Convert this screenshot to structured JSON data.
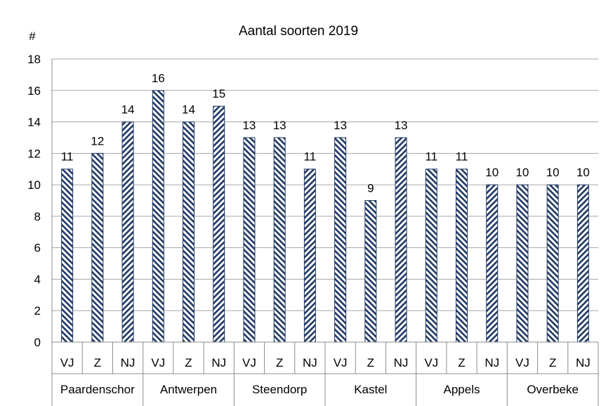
{
  "chart_data": {
    "type": "bar",
    "title": "Aantal soorten 2019",
    "ylabel": "#",
    "xlabel": "",
    "ylim": [
      0,
      18
    ],
    "yticks": [
      0,
      2,
      4,
      6,
      8,
      10,
      12,
      14,
      16,
      18
    ],
    "grid": true,
    "legend": "none",
    "groups": [
      {
        "name": "Paardenschor",
        "categories": [
          "VJ",
          "Z",
          "NJ"
        ],
        "values": [
          11,
          12,
          14
        ]
      },
      {
        "name": "Antwerpen",
        "categories": [
          "VJ",
          "Z",
          "NJ"
        ],
        "values": [
          16,
          14,
          15
        ]
      },
      {
        "name": "Steendorp",
        "categories": [
          "VJ",
          "Z",
          "NJ"
        ],
        "values": [
          13,
          13,
          11
        ]
      },
      {
        "name": "Kastel",
        "categories": [
          "VJ",
          "Z",
          "NJ"
        ],
        "values": [
          13,
          9,
          13
        ]
      },
      {
        "name": "Appels",
        "categories": [
          "VJ",
          "Z",
          "NJ"
        ],
        "values": [
          11,
          11,
          10
        ]
      },
      {
        "name": "Overbeke",
        "categories": [
          "VJ",
          "Z",
          "NJ"
        ],
        "values": [
          10,
          10,
          10
        ]
      }
    ],
    "bar_color": "#1f3864"
  }
}
